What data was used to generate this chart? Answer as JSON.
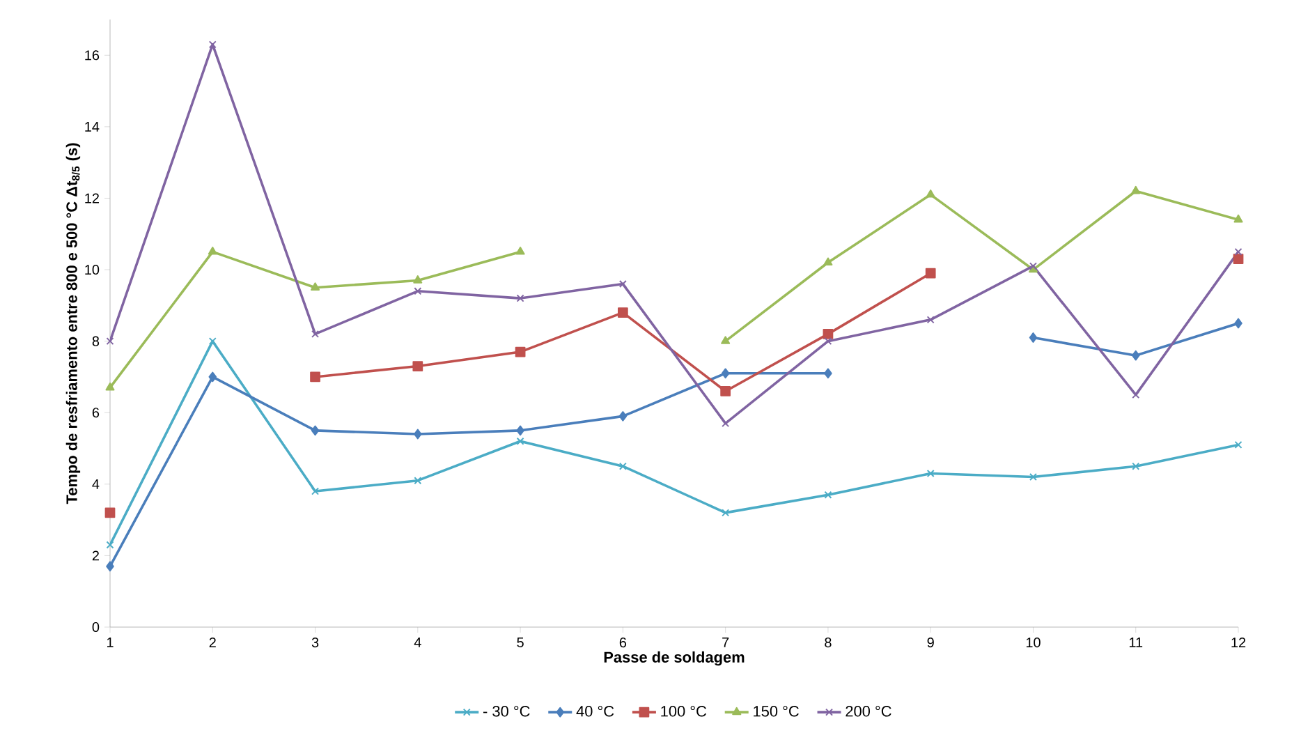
{
  "chart_data": {
    "type": "line",
    "xlabel": "Passe de soldagem",
    "ylabel": "Tempo de resfriamento entre 800 e 500 °C Δt$_{8/5}$ (s)",
    "x": [
      1,
      2,
      3,
      4,
      5,
      6,
      7,
      8,
      9,
      10,
      11,
      12
    ],
    "xlim": [
      1,
      12
    ],
    "xticks": [
      1,
      2,
      3,
      4,
      5,
      6,
      7,
      8,
      9,
      10,
      11,
      12
    ],
    "ylim": [
      0,
      17
    ],
    "yticks": [
      0,
      2,
      4,
      6,
      8,
      10,
      12,
      14,
      16
    ],
    "grid": false,
    "legend": "bottom",
    "series": [
      {
        "name": "- 30 °C",
        "color": "#4bacc6",
        "marker": "cross",
        "values": [
          2.3,
          8.0,
          3.8,
          4.1,
          5.2,
          4.5,
          3.2,
          3.7,
          4.3,
          4.2,
          4.5,
          5.1
        ]
      },
      {
        "name": "40 °C",
        "color": "#4a7ebb",
        "marker": "diamond",
        "values": [
          1.7,
          7.0,
          5.5,
          5.4,
          5.5,
          5.9,
          7.1,
          7.1,
          null,
          8.1,
          7.6,
          8.5
        ]
      },
      {
        "name": "100 °C",
        "color": "#c0504d",
        "marker": "square",
        "values": [
          3.2,
          null,
          7.0,
          7.3,
          7.7,
          8.8,
          6.6,
          8.2,
          9.9,
          null,
          null,
          10.3
        ]
      },
      {
        "name": "150 °C",
        "color": "#9bbb59",
        "marker": "triangle",
        "values": [
          6.7,
          10.5,
          9.5,
          9.7,
          10.5,
          null,
          8.0,
          10.2,
          12.1,
          10.0,
          12.2,
          11.4
        ]
      },
      {
        "name": "200 °C",
        "color": "#8064a2",
        "marker": "cross",
        "values": [
          8.0,
          16.3,
          8.2,
          9.4,
          9.2,
          9.6,
          5.7,
          8.0,
          8.6,
          10.1,
          6.5,
          10.5
        ]
      }
    ]
  }
}
